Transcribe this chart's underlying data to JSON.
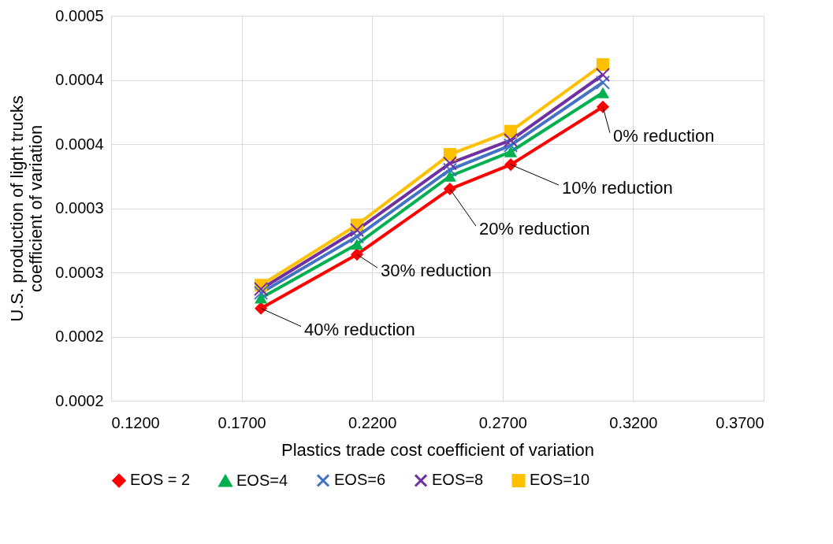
{
  "chart_data": {
    "type": "line",
    "xlabel": "Plastics trade cost coefficient of variation",
    "ylabel": "U.S. production of light trucks\ncoefficient of variation",
    "x": [
      0.1774,
      0.2142,
      0.2498,
      0.2731,
      0.3084
    ],
    "xlim": [
      0.12,
      0.37
    ],
    "xticks": [
      {
        "value": 0.12,
        "label": "0.1200"
      },
      {
        "value": 0.17,
        "label": "0.1700"
      },
      {
        "value": 0.22,
        "label": "0.2200"
      },
      {
        "value": 0.27,
        "label": "0.2700"
      },
      {
        "value": 0.32,
        "label": "0.3200"
      },
      {
        "value": 0.37,
        "label": "0.3700"
      }
    ],
    "ylim": [
      0.000175,
      0.000475
    ],
    "yticks": [
      {
        "value": 0.000175,
        "label": "0.0002"
      },
      {
        "value": 0.000225,
        "label": "0.0002"
      },
      {
        "value": 0.000275,
        "label": "0.0003"
      },
      {
        "value": 0.000325,
        "label": "0.0003"
      },
      {
        "value": 0.000375,
        "label": "0.0004"
      },
      {
        "value": 0.000425,
        "label": "0.0004"
      },
      {
        "value": 0.000475,
        "label": "0.0005"
      }
    ],
    "grid": true,
    "legend": "bottom",
    "series": [
      {
        "name": "EOS = 2",
        "color": "#ff0000",
        "marker": "diamond",
        "values": [
          0.000247,
          0.000289,
          0.00034,
          0.000359,
          0.000404
        ]
      },
      {
        "name": "EOS=4",
        "color": "#00b050",
        "marker": "triangle",
        "values": [
          0.000255,
          0.000297,
          0.00035,
          0.000369,
          0.000415
        ]
      },
      {
        "name": "EOS=6",
        "color": "#4472c4",
        "marker": "cross",
        "values": [
          0.000259,
          0.000303,
          0.000355,
          0.000374,
          0.000423
        ]
      },
      {
        "name": "EOS=8",
        "color": "#7030a0",
        "marker": "cross",
        "values": [
          0.000262,
          0.000308,
          0.00036,
          0.000378,
          0.000429
        ]
      },
      {
        "name": "EOS=10",
        "color": "#ffc000",
        "marker": "square",
        "values": [
          0.000265,
          0.000312,
          0.000367,
          0.000385,
          0.000437
        ]
      }
    ],
    "annotations": [
      {
        "text": "40% reduction",
        "x": 0.1774,
        "y": 0.000247
      },
      {
        "text": "30% reduction",
        "x": 0.2142,
        "y": 0.000289
      },
      {
        "text": "20% reduction",
        "x": 0.2498,
        "y": 0.00034
      },
      {
        "text": "10% reduction",
        "x": 0.2731,
        "y": 0.000359
      },
      {
        "text": "0% reduction",
        "x": 0.3084,
        "y": 0.000404
      }
    ]
  }
}
